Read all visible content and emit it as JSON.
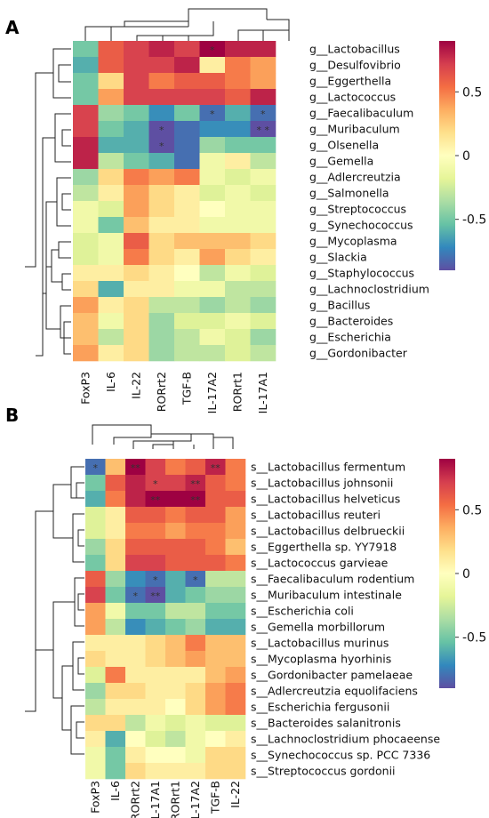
{
  "chart_data": [
    {
      "type": "heatmap",
      "panel": "A",
      "rows": [
        "g__Lactobacillus",
        "g__Desulfovibrio",
        "g__Eggerthella",
        "g__Lactococcus",
        "g__Faecalibaculum",
        "g__Muribaculum",
        "g__Olsenella",
        "g__Gemella",
        "g__Adlercreutzia",
        "g__Salmonella",
        "g__Streptococcus",
        "g__Synechococcus",
        "g__Mycoplasma",
        "g__Slackia",
        "g__Staphylococcus",
        "g__Lachnoclostridium",
        "g__Bacillus",
        "g__Bacteroides",
        "g__Escherichia",
        "g__Gordonibacter"
      ],
      "columns": [
        "FoxP3",
        "IL-6",
        "IL-22",
        "RORrt2",
        "TGF-B",
        "IL-17A2",
        "RORrt1",
        "IL-17A1"
      ],
      "values": [
        [
          -0.5,
          0.6,
          0.7,
          0.8,
          0.7,
          0.9,
          0.8,
          0.8
        ],
        [
          -0.6,
          0.6,
          0.7,
          0.7,
          0.8,
          0.1,
          0.5,
          0.4
        ],
        [
          -0.5,
          0.2,
          0.7,
          0.5,
          0.6,
          0.6,
          0.5,
          0.4
        ],
        [
          -0.5,
          0.4,
          0.7,
          0.7,
          0.7,
          0.7,
          0.6,
          0.8
        ],
        [
          0.7,
          -0.4,
          -0.5,
          -0.7,
          -0.5,
          -0.8,
          -0.6,
          -0.8
        ],
        [
          0.7,
          -0.5,
          -0.6,
          -0.9,
          -0.8,
          -0.7,
          -0.7,
          -0.9
        ],
        [
          0.8,
          -0.6,
          -0.6,
          -0.9,
          -0.8,
          -0.4,
          -0.5,
          -0.5
        ],
        [
          0.8,
          -0.3,
          -0.5,
          -0.6,
          -0.8,
          -0.1,
          0.1,
          -0.3
        ],
        [
          -0.4,
          0.2,
          0.5,
          0.4,
          0.5,
          -0.1,
          -0.2,
          -0.1
        ],
        [
          -0.3,
          0.1,
          0.4,
          0.2,
          0.1,
          -0.2,
          -0.1,
          -0.2
        ],
        [
          -0.1,
          -0.2,
          0.4,
          0.2,
          0.1,
          0.0,
          -0.1,
          -0.1
        ],
        [
          -0.1,
          -0.5,
          0.3,
          0.1,
          0.1,
          -0.1,
          -0.1,
          -0.1
        ],
        [
          -0.2,
          -0.1,
          0.6,
          0.2,
          0.3,
          0.3,
          0.3,
          0.2
        ],
        [
          -0.2,
          -0.1,
          0.5,
          0.2,
          0.1,
          0.4,
          0.2,
          0.1
        ],
        [
          0.1,
          0.1,
          0.2,
          0.1,
          0.0,
          -0.3,
          -0.1,
          -0.2
        ],
        [
          0.2,
          -0.6,
          0.1,
          0.1,
          -0.1,
          -0.1,
          -0.3,
          -0.3
        ],
        [
          0.4,
          0.1,
          0.2,
          -0.3,
          -0.3,
          -0.4,
          -0.3,
          -0.4
        ],
        [
          0.3,
          -0.1,
          0.2,
          -0.4,
          -0.2,
          -0.2,
          -0.1,
          -0.2
        ],
        [
          0.3,
          -0.3,
          0.2,
          -0.4,
          -0.3,
          -0.1,
          -0.2,
          -0.4
        ],
        [
          0.4,
          0.1,
          0.2,
          -0.4,
          -0.3,
          -0.3,
          -0.2,
          -0.3
        ]
      ],
      "significance": [
        [
          "",
          "",
          "",
          "",
          "",
          "*",
          "",
          ""
        ],
        [
          "",
          "",
          "",
          "",
          "",
          "",
          "",
          ""
        ],
        [
          "",
          "",
          "",
          "",
          "",
          "",
          "",
          ""
        ],
        [
          "",
          "",
          "",
          "",
          "",
          "",
          "",
          ""
        ],
        [
          "",
          "",
          "",
          "",
          "",
          "*",
          "",
          "*"
        ],
        [
          "",
          "",
          "",
          "*",
          "",
          "",
          "",
          "* *"
        ],
        [
          "",
          "",
          "",
          "*",
          "",
          "",
          "",
          ""
        ],
        [
          "",
          "",
          "",
          "",
          "",
          "",
          "",
          ""
        ],
        [
          "",
          "",
          "",
          "",
          "",
          "",
          "",
          ""
        ],
        [
          "",
          "",
          "",
          "",
          "",
          "",
          "",
          ""
        ],
        [
          "",
          "",
          "",
          "",
          "",
          "",
          "",
          ""
        ],
        [
          "",
          "",
          "",
          "",
          "",
          "",
          "",
          ""
        ],
        [
          "",
          "",
          "",
          "",
          "",
          "",
          "",
          ""
        ],
        [
          "",
          "",
          "",
          "",
          "",
          "",
          "",
          ""
        ],
        [
          "",
          "",
          "",
          "",
          "",
          "",
          "",
          ""
        ],
        [
          "",
          "",
          "",
          "",
          "",
          "",
          "",
          ""
        ],
        [
          "",
          "",
          "",
          "",
          "",
          "",
          "",
          ""
        ],
        [
          "",
          "",
          "",
          "",
          "",
          "",
          "",
          ""
        ],
        [
          "",
          "",
          "",
          "",
          "",
          "",
          "",
          ""
        ],
        [
          "",
          "",
          "",
          "",
          "",
          "",
          "",
          ""
        ]
      ],
      "colorbar": {
        "min": -0.9,
        "max": 0.9,
        "ticks": [
          0.5,
          0,
          -0.5
        ],
        "tick_labels": [
          "0.5",
          "0",
          "-0.5"
        ]
      }
    },
    {
      "type": "heatmap",
      "panel": "B",
      "rows": [
        "s__Lactobacillus fermentum",
        "s__Lactobacillus johnsonii",
        "s__Lactobacillus helveticus",
        "s__Lactobacillus reuteri",
        "s__Lactobacillus delbrueckii",
        "s__Eggerthella sp. YY7918",
        "s__Lactococcus garvieae",
        "s__Faecalibaculum rodentium",
        "s__Muribaculum intestinale",
        "s__Escherichia coli",
        "s__Gemella morbillorum",
        "s__Lactobacillus murinus",
        "s__Mycoplasma hyorhinis",
        "s__Gordonibacter pamelaeae",
        "s__Adlercreutzia equolifaciens",
        "s__Escherichia fergusonii",
        "s__Bacteroides salanitronis",
        "s__Lachnoclostridium phocaeense",
        "s__Synechococcus sp. PCC 7336",
        "s__Streptococcus gordonii"
      ],
      "columns": [
        "FoxP3",
        "IL-6",
        "RORrt2",
        "IL-17A1",
        "RORrt1",
        "IL-17A2",
        "TGF-B",
        "IL-22"
      ],
      "values": [
        [
          -0.8,
          0.3,
          0.9,
          0.7,
          0.5,
          0.6,
          0.8,
          0.5
        ],
        [
          -0.5,
          0.6,
          0.8,
          0.7,
          0.7,
          0.8,
          0.6,
          0.5
        ],
        [
          -0.6,
          0.5,
          0.8,
          0.9,
          0.9,
          0.9,
          0.6,
          0.6
        ],
        [
          -0.2,
          0.1,
          0.6,
          0.6,
          0.5,
          0.6,
          0.6,
          0.4
        ],
        [
          -0.2,
          0.1,
          0.5,
          0.5,
          0.4,
          0.5,
          0.5,
          0.4
        ],
        [
          -0.4,
          0.2,
          0.6,
          0.6,
          0.6,
          0.6,
          0.5,
          0.3
        ],
        [
          -0.5,
          0.2,
          0.7,
          0.7,
          0.6,
          0.6,
          0.6,
          0.5
        ],
        [
          0.6,
          -0.4,
          -0.7,
          -0.8,
          -0.6,
          -0.8,
          -0.3,
          -0.3
        ],
        [
          0.7,
          -0.5,
          -0.8,
          -0.9,
          -0.6,
          -0.5,
          -0.4,
          -0.4
        ],
        [
          0.4,
          -0.1,
          -0.5,
          -0.5,
          -0.3,
          -0.3,
          -0.5,
          -0.5
        ],
        [
          0.4,
          -0.3,
          -0.7,
          -0.6,
          -0.5,
          -0.4,
          -0.6,
          -0.6
        ],
        [
          0.1,
          0.1,
          0.1,
          0.2,
          0.3,
          0.5,
          0.3,
          0.3
        ],
        [
          0.2,
          0.1,
          0.1,
          0.2,
          0.3,
          0.4,
          0.3,
          0.3
        ],
        [
          -0.2,
          0.5,
          0.1,
          0.1,
          0.1,
          0.1,
          0.3,
          0.4
        ],
        [
          -0.4,
          0.2,
          0.2,
          0.1,
          0.1,
          0.2,
          0.4,
          0.5
        ],
        [
          -0.3,
          0.1,
          0.1,
          0.1,
          0.0,
          0.2,
          0.4,
          0.5
        ],
        [
          0.2,
          0.2,
          -0.3,
          -0.1,
          -0.2,
          -0.1,
          -0.2,
          -0.2
        ],
        [
          0.1,
          -0.6,
          0.0,
          -0.2,
          -0.3,
          -0.1,
          0.0,
          0.1
        ],
        [
          -0.1,
          -0.5,
          0.1,
          0.0,
          0.0,
          -0.1,
          0.2,
          0.2
        ],
        [
          -0.1,
          -0.5,
          0.2,
          0.1,
          0.1,
          0.1,
          0.2,
          0.2
        ]
      ],
      "significance": [
        [
          "*",
          "",
          "**",
          "",
          "",
          "",
          "**",
          ""
        ],
        [
          "",
          "",
          "",
          "*",
          "",
          "**",
          "",
          ""
        ],
        [
          "",
          "",
          "",
          "**",
          "",
          "**",
          "",
          ""
        ],
        [
          "",
          "",
          "",
          "",
          "",
          "",
          "",
          ""
        ],
        [
          "",
          "",
          "",
          "",
          "",
          "",
          "",
          ""
        ],
        [
          "",
          "",
          "",
          "",
          "",
          "",
          "",
          ""
        ],
        [
          "",
          "",
          "",
          "",
          "",
          "",
          "",
          ""
        ],
        [
          "",
          "",
          "",
          "*",
          "",
          "*",
          "",
          ""
        ],
        [
          "",
          "",
          "*",
          "**",
          "",
          "",
          "",
          ""
        ],
        [
          "",
          "",
          "",
          "",
          "",
          "",
          "",
          ""
        ],
        [
          "",
          "",
          "",
          "",
          "",
          "",
          "",
          ""
        ],
        [
          "",
          "",
          "",
          "",
          "",
          "",
          "",
          ""
        ],
        [
          "",
          "",
          "",
          "",
          "",
          "",
          "",
          ""
        ],
        [
          "",
          "",
          "",
          "",
          "",
          "",
          "",
          ""
        ],
        [
          "",
          "",
          "",
          "",
          "",
          "",
          "",
          ""
        ],
        [
          "",
          "",
          "",
          "",
          "",
          "",
          "",
          ""
        ],
        [
          "",
          "",
          "",
          "",
          "",
          "",
          "",
          ""
        ],
        [
          "",
          "",
          "",
          "",
          "",
          "",
          "",
          ""
        ],
        [
          "",
          "",
          "",
          "",
          "",
          "",
          "",
          ""
        ],
        [
          "",
          "",
          "",
          "",
          "",
          "",
          "",
          ""
        ]
      ],
      "colorbar": {
        "min": -0.9,
        "max": 0.9,
        "ticks": [
          0.5,
          0,
          -0.5
        ],
        "tick_labels": [
          "0.5",
          "0",
          "-0.5"
        ]
      }
    }
  ]
}
